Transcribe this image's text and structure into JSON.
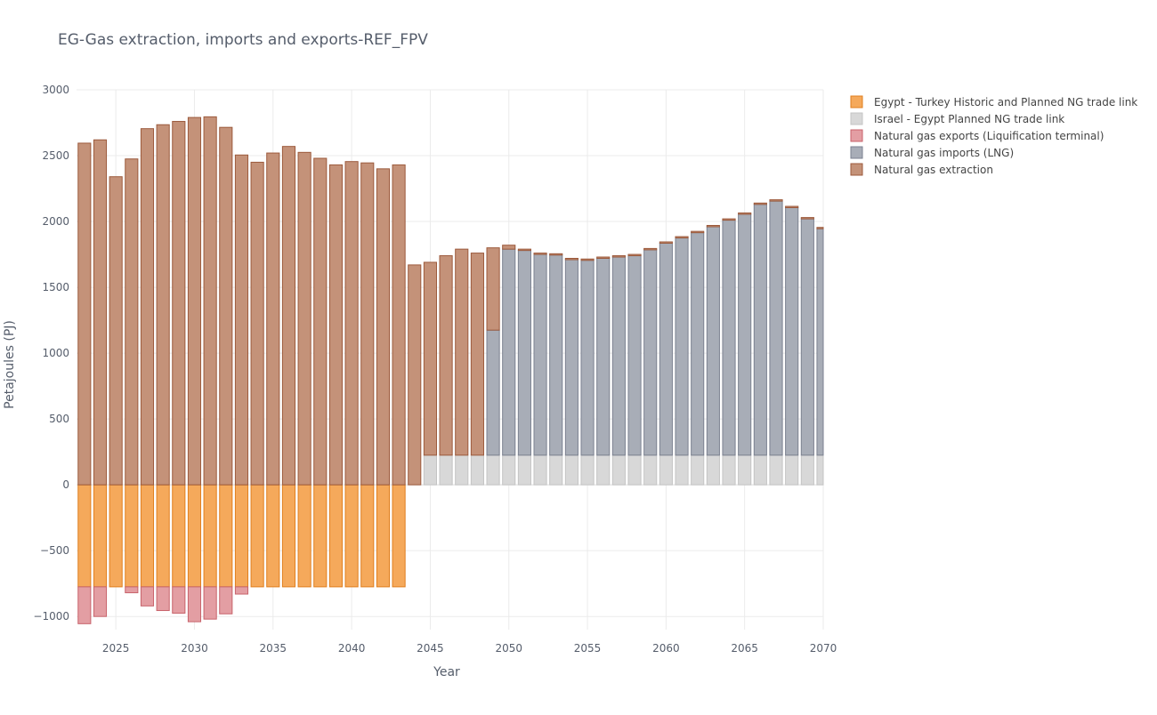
{
  "chart_data": {
    "type": "bar",
    "stacked": true,
    "title": "EG-Gas extraction, imports and exports-REF_FPV",
    "xlabel": "Year",
    "ylabel": "Petajoules (PJ)",
    "xlim": [
      2022.5,
      2070.0
    ],
    "ylim": [
      -1100,
      3000
    ],
    "x_ticks": [
      2025,
      2030,
      2035,
      2040,
      2045,
      2050,
      2055,
      2060,
      2065,
      2070
    ],
    "y_ticks": [
      -1000,
      -500,
      0,
      500,
      1000,
      1500,
      2000,
      2500,
      3000
    ],
    "y_tick_labels": [
      "−1000",
      "−500",
      "0",
      "500",
      "1000",
      "1500",
      "2000",
      "2500",
      "3000"
    ],
    "grid": true,
    "legend_position": "right",
    "x": [
      2023,
      2024,
      2025,
      2026,
      2027,
      2028,
      2029,
      2030,
      2031,
      2032,
      2033,
      2034,
      2035,
      2036,
      2037,
      2038,
      2039,
      2040,
      2041,
      2042,
      2043,
      2044,
      2045,
      2046,
      2047,
      2048,
      2049,
      2050,
      2051,
      2052,
      2053,
      2054,
      2055,
      2056,
      2057,
      2058,
      2059,
      2060,
      2061,
      2062,
      2063,
      2064,
      2065,
      2066,
      2067,
      2068,
      2069,
      2070
    ],
    "series": [
      {
        "name": "Egypt - Turkey Historic and Planned NG trade link",
        "color": "#f5a95b",
        "stroke": "#e07f1f",
        "values": [
          -775,
          -775,
          -775,
          -775,
          -775,
          -775,
          -775,
          -775,
          -775,
          -775,
          -775,
          -775,
          -775,
          -775,
          -775,
          -775,
          -775,
          -775,
          -775,
          -775,
          -775,
          0,
          0,
          0,
          0,
          0,
          0,
          0,
          0,
          0,
          0,
          0,
          0,
          0,
          0,
          0,
          0,
          0,
          0,
          0,
          0,
          0,
          0,
          0,
          0,
          0,
          0,
          0
        ]
      },
      {
        "name": "Israel - Egypt Planned NG trade link",
        "color": "#d8d8d8",
        "stroke": "#c4c4c4",
        "values": [
          0,
          0,
          0,
          0,
          0,
          0,
          0,
          0,
          0,
          0,
          0,
          0,
          0,
          0,
          0,
          0,
          0,
          0,
          0,
          0,
          0,
          0,
          225,
          225,
          225,
          225,
          225,
          225,
          225,
          225,
          225,
          225,
          225,
          225,
          225,
          225,
          225,
          225,
          225,
          225,
          225,
          225,
          225,
          225,
          225,
          225,
          225,
          225
        ]
      },
      {
        "name": "Natural gas exports (Liquification terminal)",
        "color": "#e39ea3",
        "stroke": "#c8636b",
        "values": [
          -280,
          -225,
          0,
          -45,
          -145,
          -180,
          -200,
          -265,
          -245,
          -205,
          -55,
          0,
          0,
          0,
          0,
          0,
          0,
          0,
          0,
          0,
          0,
          0,
          0,
          0,
          0,
          0,
          0,
          0,
          0,
          0,
          0,
          0,
          0,
          0,
          0,
          0,
          0,
          0,
          0,
          0,
          0,
          0,
          0,
          0,
          0,
          0,
          0,
          0
        ]
      },
      {
        "name": "Natural gas imports (LNG)",
        "color": "#a8adb7",
        "stroke": "#7b8190",
        "values": [
          0,
          0,
          0,
          0,
          0,
          0,
          0,
          0,
          0,
          0,
          0,
          0,
          0,
          0,
          0,
          0,
          0,
          0,
          0,
          0,
          0,
          0,
          0,
          0,
          0,
          0,
          950,
          1565,
          1555,
          1525,
          1520,
          1485,
          1480,
          1495,
          1505,
          1515,
          1560,
          1610,
          1650,
          1690,
          1735,
          1785,
          1830,
          1905,
          1930,
          1880,
          1795,
          1720
        ]
      },
      {
        "name": "Natural gas extraction",
        "color": "#c49279",
        "stroke": "#9c5a3c",
        "values": [
          2595,
          2620,
          2340,
          2475,
          2705,
          2735,
          2760,
          2790,
          2795,
          2715,
          2505,
          2450,
          2520,
          2570,
          2525,
          2480,
          2430,
          2455,
          2445,
          2400,
          2430,
          1670,
          1465,
          1515,
          1565,
          1535,
          625,
          30,
          10,
          10,
          10,
          10,
          10,
          10,
          10,
          10,
          10,
          10,
          10,
          10,
          10,
          10,
          10,
          10,
          10,
          10,
          10,
          10
        ]
      }
    ]
  }
}
